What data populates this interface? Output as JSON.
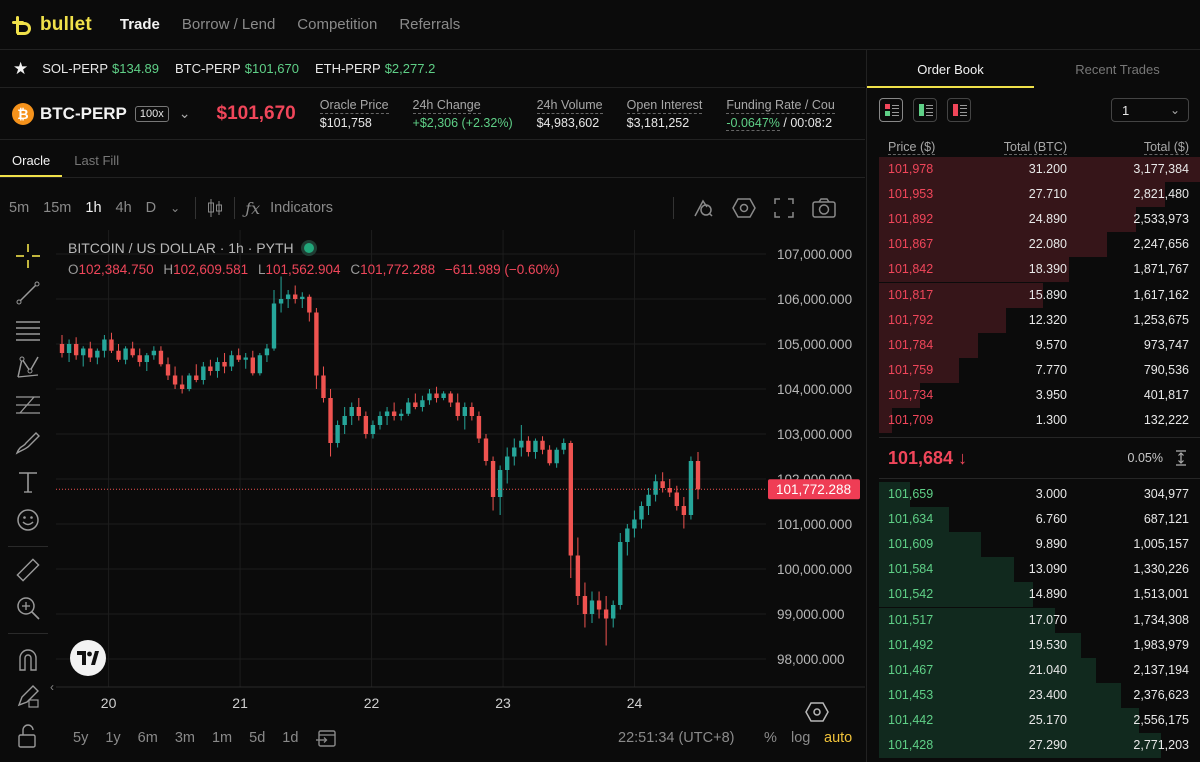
{
  "brand": {
    "name": "bullet"
  },
  "nav": {
    "items": [
      "Trade",
      "Borrow / Lend",
      "Competition",
      "Referrals"
    ],
    "active": "Trade"
  },
  "tickers": [
    {
      "symbol": "SOL-PERP",
      "price": "$134.89"
    },
    {
      "symbol": "BTC-PERP",
      "price": "$101,670"
    },
    {
      "symbol": "ETH-PERP",
      "price": "$2,277.2"
    }
  ],
  "market": {
    "coin_glyph": "₿",
    "name": "BTC-PERP",
    "leverage": "100x",
    "price": "$101,670",
    "stats": [
      {
        "label": "Oracle Price",
        "value": "$101,758"
      },
      {
        "label": "24h Change",
        "value": "+$2,306 (+2.32%)"
      },
      {
        "label": "24h Volume",
        "value": "$4,983,602"
      },
      {
        "label": "Open Interest",
        "value": "$3,181,252"
      },
      {
        "label": "Funding Rate / Cou",
        "value": "-0.0647%",
        "value_suffix": " / 00:08:2"
      }
    ]
  },
  "chart_tabs": [
    "Oracle",
    "Last Fill"
  ],
  "chart_toolbar": {
    "intervals": [
      "5m",
      "15m",
      "1h",
      "4h",
      "D"
    ],
    "active_interval": "1h",
    "indicators_label": "Indicators"
  },
  "chart": {
    "legend_title": "BITCOIN / US DOLLAR · 1h · PYTH",
    "ohlc": {
      "o_label": "O",
      "o": "102,384.750",
      "h_label": "H",
      "h": "102,609.581",
      "l_label": "L",
      "l": "101,562.904",
      "c_label": "C",
      "c": "101,772.288",
      "chg": "−611.989 (−0.60%)"
    },
    "current_price_label": "101,772.288"
  },
  "chart_data": {
    "type": "candlestick",
    "title": "BITCOIN / US DOLLAR · 1h · PYTH",
    "y_ticks": [
      "107,000.000",
      "106,000.000",
      "105,000.000",
      "104,000.000",
      "103,000.000",
      "102,000.000",
      "101,000.000",
      "100,000.000",
      "99,000.000",
      "98,000.000"
    ],
    "y_tick_values": [
      107000,
      106000,
      105000,
      104000,
      103000,
      102000,
      101000,
      100000,
      99000,
      98000
    ],
    "x_ticks": [
      "20",
      "21",
      "22",
      "23",
      "24"
    ],
    "x_tick_positions": [
      19.37,
      20.37,
      21.37,
      22.37,
      23.37
    ],
    "x_range": [
      18.97,
      24.37
    ],
    "ylim": [
      97600,
      107500
    ],
    "current_price": 101772.288,
    "candles": [
      [
        105000,
        105200,
        104700,
        104800
      ],
      [
        104800,
        105100,
        104600,
        105000
      ],
      [
        105000,
        105150,
        104650,
        104750
      ],
      [
        104750,
        104950,
        104500,
        104900
      ],
      [
        104900,
        105050,
        104600,
        104700
      ],
      [
        104700,
        104900,
        104550,
        104850
      ],
      [
        104850,
        105200,
        104700,
        105100
      ],
      [
        105100,
        105250,
        104800,
        104850
      ],
      [
        104850,
        105000,
        104600,
        104650
      ],
      [
        104650,
        104950,
        104550,
        104900
      ],
      [
        104900,
        105050,
        104700,
        104750
      ],
      [
        104750,
        104900,
        104500,
        104600
      ],
      [
        104600,
        104800,
        104400,
        104750
      ],
      [
        104750,
        104950,
        104650,
        104850
      ],
      [
        104850,
        104950,
        104500,
        104550
      ],
      [
        104550,
        104700,
        104200,
        104300
      ],
      [
        104300,
        104500,
        104000,
        104100
      ],
      [
        104100,
        104300,
        103900,
        104000
      ],
      [
        104000,
        104350,
        103950,
        104300
      ],
      [
        104300,
        104550,
        104150,
        104200
      ],
      [
        104200,
        104600,
        104100,
        104500
      ],
      [
        104500,
        104650,
        104300,
        104400
      ],
      [
        104400,
        104700,
        104250,
        104600
      ],
      [
        104600,
        104800,
        104350,
        104500
      ],
      [
        104500,
        104850,
        104400,
        104750
      ],
      [
        104750,
        104900,
        104600,
        104650
      ],
      [
        104650,
        104800,
        104450,
        104700
      ],
      [
        104700,
        104850,
        104300,
        104350
      ],
      [
        104350,
        104800,
        104300,
        104750
      ],
      [
        104750,
        105000,
        104600,
        104900
      ],
      [
        104900,
        106200,
        104850,
        105900
      ],
      [
        105900,
        106500,
        105700,
        106000
      ],
      [
        106000,
        106200,
        105800,
        106100
      ],
      [
        106100,
        106300,
        105900,
        106000
      ],
      [
        106000,
        106150,
        105800,
        106050
      ],
      [
        106050,
        106100,
        105500,
        105700
      ],
      [
        105700,
        105800,
        104000,
        104300
      ],
      [
        104300,
        104500,
        103700,
        103800
      ],
      [
        103800,
        104000,
        102500,
        102800
      ],
      [
        102800,
        103300,
        102700,
        103200
      ],
      [
        103200,
        103600,
        103000,
        103400
      ],
      [
        103400,
        103700,
        103200,
        103600
      ],
      [
        103600,
        103800,
        103300,
        103400
      ],
      [
        103400,
        103500,
        102900,
        103000
      ],
      [
        103000,
        103300,
        102900,
        103200
      ],
      [
        103200,
        103500,
        103100,
        103400
      ],
      [
        103400,
        103600,
        103200,
        103500
      ],
      [
        103500,
        103700,
        103300,
        103400
      ],
      [
        103400,
        103550,
        103300,
        103450
      ],
      [
        103450,
        103800,
        103400,
        103700
      ],
      [
        103700,
        103900,
        103550,
        103600
      ],
      [
        103600,
        103850,
        103500,
        103750
      ],
      [
        103750,
        104000,
        103650,
        103900
      ],
      [
        103900,
        104050,
        103700,
        103800
      ],
      [
        103800,
        103950,
        103750,
        103900
      ],
      [
        103900,
        103950,
        103600,
        103700
      ],
      [
        103700,
        103900,
        103300,
        103400
      ],
      [
        103400,
        103700,
        103100,
        103600
      ],
      [
        103600,
        103700,
        103300,
        103400
      ],
      [
        103400,
        103500,
        102800,
        102900
      ],
      [
        102900,
        103000,
        102300,
        102400
      ],
      [
        102400,
        102500,
        101300,
        101600
      ],
      [
        101600,
        102300,
        101200,
        102200
      ],
      [
        102200,
        102700,
        101900,
        102500
      ],
      [
        102500,
        102900,
        102300,
        102700
      ],
      [
        102700,
        103200,
        102500,
        102850
      ],
      [
        102850,
        102950,
        102500,
        102600
      ],
      [
        102600,
        102900,
        102450,
        102850
      ],
      [
        102850,
        102950,
        102550,
        102650
      ],
      [
        102650,
        102750,
        102300,
        102350
      ],
      [
        102350,
        102700,
        102250,
        102650
      ],
      [
        102650,
        102900,
        102550,
        102800
      ],
      [
        102800,
        102850,
        99800,
        100300
      ],
      [
        100300,
        100700,
        99200,
        99400
      ],
      [
        99400,
        99700,
        98700,
        99000
      ],
      [
        99000,
        99500,
        98800,
        99300
      ],
      [
        99300,
        99500,
        98900,
        99100
      ],
      [
        99100,
        99400,
        98300,
        98900
      ],
      [
        98900,
        99300,
        98700,
        99200
      ],
      [
        99200,
        100800,
        99100,
        100600
      ],
      [
        100600,
        101000,
        100300,
        100900
      ],
      [
        100900,
        101300,
        100700,
        101100
      ],
      [
        101100,
        101500,
        100900,
        101400
      ],
      [
        101400,
        101800,
        101200,
        101650
      ],
      [
        101650,
        102100,
        101500,
        101950
      ],
      [
        101950,
        102150,
        101700,
        101800
      ],
      [
        101800,
        102000,
        101600,
        101700
      ],
      [
        101700,
        101850,
        101300,
        101400
      ],
      [
        101400,
        101600,
        100900,
        101200
      ],
      [
        101200,
        102500,
        101100,
        102400
      ],
      [
        102400,
        102600,
        101550,
        101770
      ]
    ]
  },
  "left_tools": [
    "crosshair-icon",
    "trend-line-icon",
    "horizontal-lines-icon",
    "pattern-icon",
    "fib-icon",
    "brush-icon",
    "text-tool-icon",
    "emoji-icon",
    "ruler-icon",
    "zoom-icon",
    "magnet-icon",
    "lock-draw-icon",
    "unlock-icon"
  ],
  "bottom_bar": {
    "ranges": [
      "5y",
      "1y",
      "6m",
      "3m",
      "1m",
      "5d",
      "1d"
    ],
    "time": "22:51:34 (UTC+8)",
    "percent": "%",
    "log": "log",
    "auto": "auto"
  },
  "order_book": {
    "tabs": [
      "Order Book",
      "Recent Trades"
    ],
    "active_tab": "Order Book",
    "tick_size": "1",
    "headers": {
      "price": "Price ($)",
      "total_btc": "Total (BTC)",
      "total_usd": "Total ($)"
    },
    "max_total": 31.2,
    "asks": [
      {
        "price": "101,978",
        "btc": "31.200",
        "usd": "3,177,384"
      },
      {
        "price": "101,953",
        "btc": "27.710",
        "usd": "2,821,480"
      },
      {
        "price": "101,892",
        "btc": "24.890",
        "usd": "2,533,973"
      },
      {
        "price": "101,867",
        "btc": "22.080",
        "usd": "2,247,656"
      },
      {
        "price": "101,842",
        "btc": "18.390",
        "usd": "1,871,767"
      },
      {
        "price": "101,817",
        "btc": "15.890",
        "usd": "1,617,162"
      },
      {
        "price": "101,792",
        "btc": "12.320",
        "usd": "1,253,675"
      },
      {
        "price": "101,784",
        "btc": "9.570",
        "usd": "973,747"
      },
      {
        "price": "101,759",
        "btc": "7.770",
        "usd": "790,536"
      },
      {
        "price": "101,734",
        "btc": "3.950",
        "usd": "401,817"
      },
      {
        "price": "101,709",
        "btc": "1.300",
        "usd": "132,222"
      }
    ],
    "mid": {
      "price": "101,684 ↓",
      "spread": "0.05%"
    },
    "bids": [
      {
        "price": "101,659",
        "btc": "3.000",
        "usd": "304,977"
      },
      {
        "price": "101,634",
        "btc": "6.760",
        "usd": "687,121"
      },
      {
        "price": "101,609",
        "btc": "9.890",
        "usd": "1,005,157"
      },
      {
        "price": "101,584",
        "btc": "13.090",
        "usd": "1,330,226"
      },
      {
        "price": "101,542",
        "btc": "14.890",
        "usd": "1,513,001"
      },
      {
        "price": "101,517",
        "btc": "17.070",
        "usd": "1,734,308"
      },
      {
        "price": "101,492",
        "btc": "19.530",
        "usd": "1,983,979"
      },
      {
        "price": "101,467",
        "btc": "21.040",
        "usd": "2,137,194"
      },
      {
        "price": "101,453",
        "btc": "23.400",
        "usd": "2,376,623"
      },
      {
        "price": "101,442",
        "btc": "25.170",
        "usd": "2,556,175"
      },
      {
        "price": "101,428",
        "btc": "27.290",
        "usd": "2,771,203"
      }
    ]
  },
  "colors": {
    "up": "#26a69a",
    "down": "#ef5350",
    "accent": "#f0e14a",
    "ask": "#f0465a",
    "bid": "#5fd087"
  }
}
